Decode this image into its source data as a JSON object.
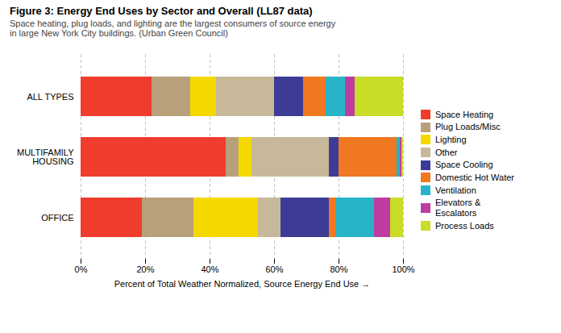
{
  "chart_data": {
    "type": "bar",
    "title": "Figure 3: Energy End Uses by Sector and Overall (LL87 data)",
    "subtitle": "Space heating, plug loads, and lighting are the largest consumers of source energy\nin large New York City buildings. (Urban Green Council)",
    "xlabel": "Percent of Total Weather Normalized, Source Energy End Use",
    "categories": [
      "ALL TYPES",
      "MULTIFAMILY\nHOUSING",
      "OFFICE"
    ],
    "series": [
      {
        "name": "Space Heating",
        "color": "#f03c2d",
        "values": [
          0.22,
          0.45,
          0.19
        ]
      },
      {
        "name": "Plug Loads/Misc",
        "color": "#b8a07a",
        "values": [
          0.12,
          0.04,
          0.16
        ]
      },
      {
        "name": "Lighting",
        "color": "#f5d800",
        "values": [
          0.08,
          0.04,
          0.2
        ]
      },
      {
        "name": "Other",
        "color": "#c8b89a",
        "values": [
          0.18,
          0.24,
          0.07
        ]
      },
      {
        "name": "Space Cooling",
        "color": "#3c3c96",
        "values": [
          0.09,
          0.03,
          0.15
        ]
      },
      {
        "name": "Domestic Hot Water",
        "color": "#f07820",
        "values": [
          0.07,
          0.18,
          0.02
        ]
      },
      {
        "name": "Ventilation",
        "color": "#28b4c8",
        "values": [
          0.06,
          0.01,
          0.12
        ]
      },
      {
        "name": "Elevators &\nEscalators",
        "color": "#be3ca0",
        "values": [
          0.03,
          0.005,
          0.05
        ]
      },
      {
        "name": "Process Loads",
        "color": "#c8dc28",
        "values": [
          0.15,
          0.005,
          0.04
        ]
      }
    ],
    "xlim": [
      0,
      1
    ],
    "xticks": [
      {
        "value": 0,
        "label": "0%"
      },
      {
        "value": 0.2,
        "label": "20%"
      },
      {
        "value": 0.4,
        "label": "40%"
      },
      {
        "value": 0.6,
        "label": "60%"
      },
      {
        "value": 0.8,
        "label": "80%"
      },
      {
        "value": 1,
        "label": "100%"
      }
    ],
    "orientation": "horizontal",
    "stacked": true,
    "grid": true,
    "legend": "right"
  }
}
